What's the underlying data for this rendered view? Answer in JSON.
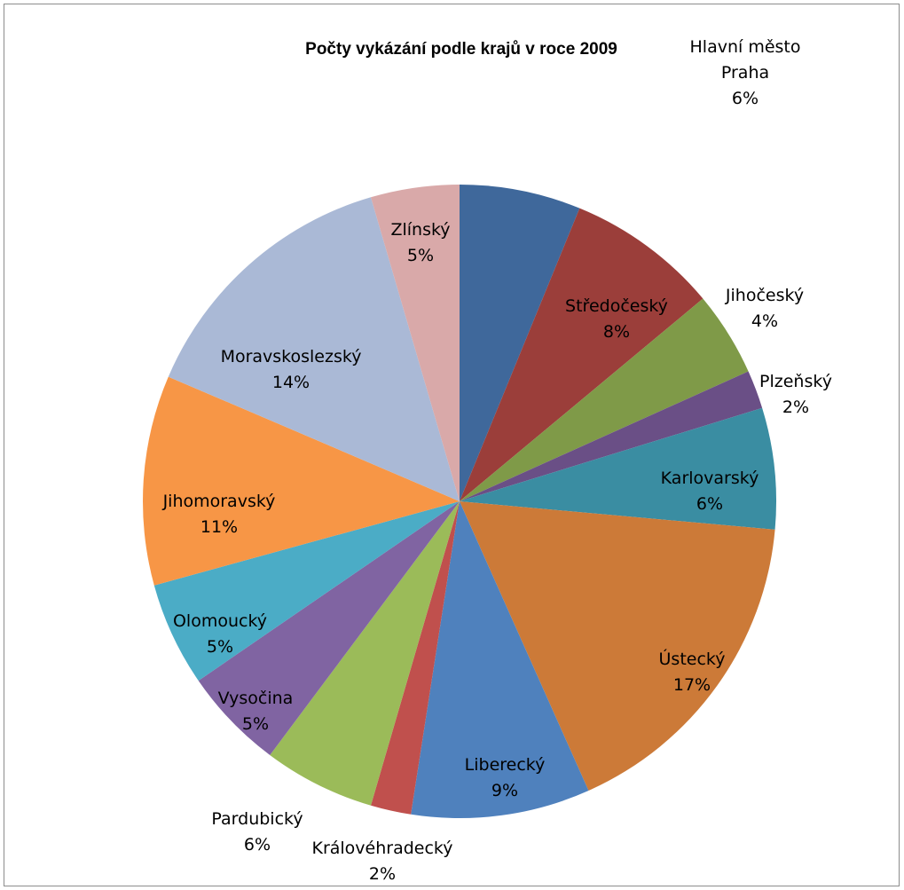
{
  "chart_data": {
    "type": "pie",
    "title": "Počty vykázání  podle krajů v roce 2009",
    "start_angle_deg": 0,
    "direction": "clockwise",
    "slices": [
      {
        "name": "Hlavní město Praha",
        "label_lines": [
          "Hlavní město",
          "Praha"
        ],
        "percent_label": "6%",
        "value": 6.3,
        "color": "#3F689B",
        "label_placement": "outside"
      },
      {
        "name": "Středočeský",
        "label_lines": [
          "Středočeský"
        ],
        "percent_label": "8%",
        "value": 7.9,
        "color": "#9B3E3A",
        "label_placement": "inside"
      },
      {
        "name": "Jihočeský",
        "label_lines": [
          "Jihočeský"
        ],
        "percent_label": "4%",
        "value": 4.4,
        "color": "#7F9A48",
        "label_placement": "outside"
      },
      {
        "name": "Plzeňský",
        "label_lines": [
          "Plzeňský"
        ],
        "percent_label": "2%",
        "value": 2.0,
        "color": "#6A4F86",
        "label_placement": "outside"
      },
      {
        "name": "Karlovarský",
        "label_lines": [
          "Karlovarský"
        ],
        "percent_label": "6%",
        "value": 6.3,
        "color": "#3A8DA2",
        "label_placement": "inside"
      },
      {
        "name": "Ústecký",
        "label_lines": [
          "Ústecký"
        ],
        "percent_label": "17%",
        "value": 17.2,
        "color": "#CC7A38",
        "label_placement": "inside"
      },
      {
        "name": "Liberecký",
        "label_lines": [
          "Liberecký"
        ],
        "percent_label": "9%",
        "value": 9.3,
        "color": "#4F81BD",
        "label_placement": "inside"
      },
      {
        "name": "Královéhradecký",
        "label_lines": [
          "Královéhradecký"
        ],
        "percent_label": "2%",
        "value": 2.1,
        "color": "#C0504D",
        "label_placement": "outside"
      },
      {
        "name": "Pardubický",
        "label_lines": [
          "Pardubický"
        ],
        "percent_label": "6%",
        "value": 5.8,
        "color": "#9BBB59",
        "label_placement": "outside"
      },
      {
        "name": "Vysočina",
        "label_lines": [
          "Vysočina"
        ],
        "percent_label": "5%",
        "value": 5.3,
        "color": "#8064A2",
        "label_placement": "inside"
      },
      {
        "name": "Olomoucký",
        "label_lines": [
          "Olomoucký"
        ],
        "percent_label": "5%",
        "value": 5.4,
        "color": "#4BACC6",
        "label_placement": "inside"
      },
      {
        "name": "Jihomoravský",
        "label_lines": [
          "Jihomoravský"
        ],
        "percent_label": "11%",
        "value": 10.9,
        "color": "#F79646",
        "label_placement": "inside"
      },
      {
        "name": "Moravskoslezský",
        "label_lines": [
          "Moravskoslezský"
        ],
        "percent_label": "14%",
        "value": 14.3,
        "color": "#AAB9D6",
        "label_placement": "inside"
      },
      {
        "name": "Zlínský",
        "label_lines": [
          "Zlínský"
        ],
        "percent_label": "5%",
        "value": 4.6,
        "color": "#D9A9A9",
        "label_placement": "inside"
      }
    ]
  }
}
